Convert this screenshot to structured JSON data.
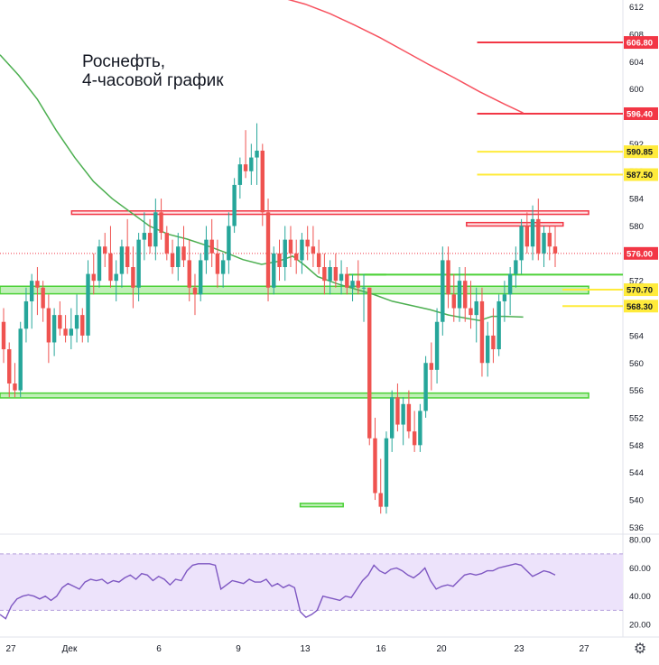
{
  "chart_data": [
    {
      "type": "candlestick",
      "title": "Роснефть,",
      "subtitle": "4-часовой график",
      "ylim": [
        535,
        613
      ],
      "y_ticks": [
        536,
        540,
        544,
        548,
        552,
        556,
        560,
        564,
        568,
        572,
        576,
        580,
        584,
        588,
        592,
        596,
        600,
        604,
        608,
        612
      ],
      "x_tick_labels": [
        "27",
        "Дек",
        "6",
        "9",
        "13",
        "16",
        "20",
        "23",
        "27"
      ],
      "colors": {
        "up": "#26a69a",
        "down": "#ef5350",
        "red_level": "#f23645",
        "yellow_level": "#ffeb3b",
        "green_level": "#4cd137",
        "ma_red": "#f7525f",
        "ma_green": "#4caf50"
      },
      "last_price": 576.0,
      "price_labels": [
        {
          "text": "606.80",
          "value": 606.8,
          "color": "#f23645",
          "text_color": "#ffffff"
        },
        {
          "text": "596.40",
          "value": 596.4,
          "color": "#f23645",
          "text_color": "#ffffff"
        },
        {
          "text": "590.85",
          "value": 590.85,
          "color": "#ffeb3b",
          "text_color": "#131722"
        },
        {
          "text": "587.50",
          "value": 587.5,
          "color": "#ffeb3b",
          "text_color": "#131722"
        },
        {
          "text": "576.00",
          "value": 576.0,
          "color": "#f23645",
          "text_color": "#ffffff"
        },
        {
          "text": "570.70",
          "value": 570.7,
          "color": "#ffeb3b",
          "text_color": "#131722"
        },
        {
          "text": "568.30",
          "value": 568.3,
          "color": "#ffeb3b",
          "text_color": "#131722"
        }
      ],
      "levels": [
        {
          "value": 606.8,
          "color": "#f23645",
          "kind": "line",
          "from": 0.766
        },
        {
          "value": 596.4,
          "color": "#f23645",
          "kind": "line",
          "from": 0.766
        },
        {
          "value": 590.85,
          "color": "#ffeb3b",
          "kind": "line",
          "from": 0.766
        },
        {
          "value": 587.5,
          "color": "#ffeb3b",
          "kind": "line",
          "from": 0.766
        },
        {
          "value": 582.2,
          "value2": 581.7,
          "color": "#f23645",
          "kind": "band",
          "from": 0.115,
          "to": 0.945
        },
        {
          "value": 580.5,
          "value2": 580.0,
          "color": "#f23645",
          "kind": "band",
          "from": 0.749,
          "to": 0.904
        },
        {
          "value": 572.9,
          "color": "#4cd137",
          "kind": "line",
          "from": 0.585
        },
        {
          "value": 571.2,
          "value2": 570.1,
          "color": "#4cd137",
          "kind": "band",
          "from": 0.0,
          "to": 0.945
        },
        {
          "value": 570.7,
          "color": "#ffeb3b",
          "kind": "line",
          "from": 0.903
        },
        {
          "value": 568.3,
          "color": "#ffeb3b",
          "kind": "line",
          "from": 0.903
        },
        {
          "value": 555.6,
          "value2": 554.9,
          "color": "#4cd137",
          "kind": "band",
          "from": 0.0,
          "to": 0.945
        },
        {
          "value": 539.5,
          "value2": 539.0,
          "color": "#4cd137",
          "kind": "band",
          "from": 0.482,
          "to": 0.551
        },
        {
          "value": 572.9,
          "color": "#4cd137",
          "kind": "line",
          "from": 0.56,
          "to": 0.62
        }
      ],
      "candles": [
        [
          566,
          568,
          560,
          562
        ],
        [
          562,
          563,
          555,
          557
        ],
        [
          557,
          560,
          555,
          556
        ],
        [
          556,
          566,
          555,
          565
        ],
        [
          565,
          571,
          563,
          569
        ],
        [
          569,
          573,
          565,
          572
        ],
        [
          572,
          574,
          567,
          571
        ],
        [
          571,
          572,
          566,
          568
        ],
        [
          568,
          570,
          560,
          563
        ],
        [
          563,
          568,
          561,
          567
        ],
        [
          567,
          569,
          564,
          565
        ],
        [
          565,
          567,
          563,
          564
        ],
        [
          564,
          568,
          562,
          565
        ],
        [
          565,
          570,
          563,
          567
        ],
        [
          567,
          568,
          563,
          564
        ],
        [
          564,
          575,
          563,
          573
        ],
        [
          573,
          576,
          570,
          572
        ],
        [
          572,
          578,
          571,
          577
        ],
        [
          577,
          579,
          574,
          576
        ],
        [
          576,
          580,
          571,
          572
        ],
        [
          572,
          575,
          569,
          573
        ],
        [
          573,
          578,
          571,
          577
        ],
        [
          577,
          581,
          573,
          574
        ],
        [
          574,
          577,
          568,
          571
        ],
        [
          571,
          579,
          569,
          578
        ],
        [
          578,
          582,
          575,
          579
        ],
        [
          579,
          581,
          576,
          577
        ],
        [
          577,
          584,
          575,
          582
        ],
        [
          582,
          584,
          578,
          579
        ],
        [
          579,
          580,
          575,
          576
        ],
        [
          576,
          578,
          573,
          574
        ],
        [
          574,
          579,
          572,
          577
        ],
        [
          577,
          580,
          574,
          575
        ],
        [
          575,
          578,
          569,
          571
        ],
        [
          571,
          573,
          567,
          570
        ],
        [
          570,
          576,
          569,
          575
        ],
        [
          575,
          580,
          573,
          578
        ],
        [
          578,
          581,
          574,
          576
        ],
        [
          576,
          578,
          571,
          573
        ],
        [
          573,
          576,
          571,
          575
        ],
        [
          575,
          582,
          573,
          580
        ],
        [
          580,
          587,
          579,
          586
        ],
        [
          586,
          590,
          584,
          589
        ],
        [
          589,
          594,
          587,
          588
        ],
        [
          588,
          592,
          586,
          590
        ],
        [
          590,
          595,
          586,
          591
        ],
        [
          591,
          592,
          580,
          582
        ],
        [
          582,
          584,
          569,
          571
        ],
        [
          571,
          577,
          570,
          576
        ],
        [
          576,
          578,
          572,
          574
        ],
        [
          574,
          580,
          572,
          578
        ],
        [
          578,
          580,
          574,
          576
        ],
        [
          576,
          578,
          573,
          575
        ],
        [
          575,
          579,
          573,
          578
        ],
        [
          578,
          580,
          575,
          577
        ],
        [
          577,
          580,
          574,
          576
        ],
        [
          576,
          578,
          573,
          574
        ],
        [
          574,
          576,
          570,
          572
        ],
        [
          572,
          575,
          570,
          574
        ],
        [
          574,
          576,
          571,
          572
        ],
        [
          572,
          575,
          570,
          573
        ],
        [
          573,
          574,
          570,
          571
        ],
        [
          571,
          573,
          569,
          572
        ],
        [
          572,
          575,
          570,
          571
        ],
        [
          571,
          573,
          566,
          571
        ],
        [
          571,
          571,
          548,
          549
        ],
        [
          549,
          552,
          540,
          541
        ],
        [
          541,
          546,
          538,
          539
        ],
        [
          539,
          550,
          538,
          549
        ],
        [
          549,
          556,
          547,
          555
        ],
        [
          555,
          557,
          550,
          551
        ],
        [
          551,
          555,
          548,
          554
        ],
        [
          554,
          556,
          549,
          550
        ],
        [
          550,
          553,
          547,
          548
        ],
        [
          548,
          554,
          547,
          553
        ],
        [
          553,
          561,
          552,
          560
        ],
        [
          560,
          563,
          556,
          559
        ],
        [
          559,
          568,
          557,
          566
        ],
        [
          566,
          577,
          564,
          575
        ],
        [
          575,
          577,
          568,
          570
        ],
        [
          570,
          573,
          566,
          568
        ],
        [
          568,
          574,
          566,
          572
        ],
        [
          572,
          574,
          566,
          568
        ],
        [
          568,
          572,
          565,
          567
        ],
        [
          567,
          571,
          563,
          569
        ],
        [
          569,
          571,
          558,
          560
        ],
        [
          560,
          566,
          558,
          564
        ],
        [
          564,
          568,
          560,
          562
        ],
        [
          562,
          570,
          561,
          569
        ],
        [
          569,
          572,
          566,
          570
        ],
        [
          570,
          574,
          567,
          573
        ],
        [
          573,
          577,
          571,
          575
        ],
        [
          575,
          581,
          573,
          580
        ],
        [
          580,
          582,
          576,
          577
        ],
        [
          577,
          583,
          575,
          581
        ],
        [
          581,
          584,
          575,
          576
        ],
        [
          576,
          580,
          574,
          579
        ],
        [
          579,
          580,
          575,
          577
        ],
        [
          577,
          580,
          574,
          576
        ]
      ],
      "ma_red": [
        [
          0.458,
          613.2
        ],
        [
          0.49,
          612.4
        ],
        [
          0.53,
          611.0
        ],
        [
          0.57,
          609.3
        ],
        [
          0.61,
          607.5
        ],
        [
          0.65,
          605.5
        ],
        [
          0.69,
          603.5
        ],
        [
          0.73,
          601.6
        ],
        [
          0.77,
          599.6
        ],
        [
          0.81,
          597.8
        ],
        [
          0.84,
          596.5
        ]
      ],
      "ma_green": [
        [
          0.0,
          605
        ],
        [
          0.03,
          602
        ],
        [
          0.06,
          598.5
        ],
        [
          0.09,
          594
        ],
        [
          0.12,
          590
        ],
        [
          0.15,
          586.5
        ],
        [
          0.18,
          584
        ],
        [
          0.21,
          582
        ],
        [
          0.24,
          580
        ],
        [
          0.27,
          578.8
        ],
        [
          0.3,
          578.1
        ],
        [
          0.33,
          577.2
        ],
        [
          0.36,
          576.2
        ],
        [
          0.39,
          575.1
        ],
        [
          0.42,
          574.4
        ],
        [
          0.445,
          574.8
        ],
        [
          0.47,
          575.6
        ],
        [
          0.49,
          574.2
        ],
        [
          0.51,
          572.6
        ],
        [
          0.54,
          571.6
        ],
        [
          0.57,
          570.8
        ],
        [
          0.6,
          570.0
        ],
        [
          0.63,
          569.0
        ],
        [
          0.66,
          568.4
        ],
        [
          0.69,
          567.8
        ],
        [
          0.72,
          567.0
        ],
        [
          0.75,
          566.5
        ],
        [
          0.77,
          566.2
        ],
        [
          0.79,
          566.8
        ],
        [
          0.81,
          566.8
        ],
        [
          0.84,
          566.7
        ]
      ],
      "rsi": {
        "y_ticks": [
          20,
          40,
          60,
          80
        ],
        "ylim": [
          11,
          84
        ],
        "band": [
          30,
          70
        ],
        "colors": {
          "line": "#7e57c2",
          "band_fill": "#ede3fb",
          "band_edge": "#b39ddb"
        },
        "values": [
          27,
          24,
          33,
          38,
          40,
          41,
          40,
          38,
          40,
          37,
          40,
          46,
          49,
          47,
          45,
          50,
          52,
          51,
          52,
          49,
          51,
          50,
          53,
          55,
          52,
          56,
          55,
          51,
          54,
          52,
          48,
          52,
          51,
          58,
          62,
          63,
          63,
          63,
          62,
          45,
          48,
          51,
          50,
          49,
          52,
          50,
          50,
          52,
          47,
          49,
          46,
          48,
          46,
          29,
          25,
          27,
          30,
          40,
          39,
          38,
          37,
          40,
          39,
          45,
          51,
          55,
          62,
          58,
          56,
          59,
          60,
          58,
          55,
          53,
          56,
          60,
          51,
          45,
          47,
          48,
          47,
          51,
          55,
          56,
          55,
          56,
          58,
          58,
          60,
          61,
          62,
          63,
          62,
          58,
          54,
          56,
          58,
          57,
          55
        ]
      }
    }
  ]
}
